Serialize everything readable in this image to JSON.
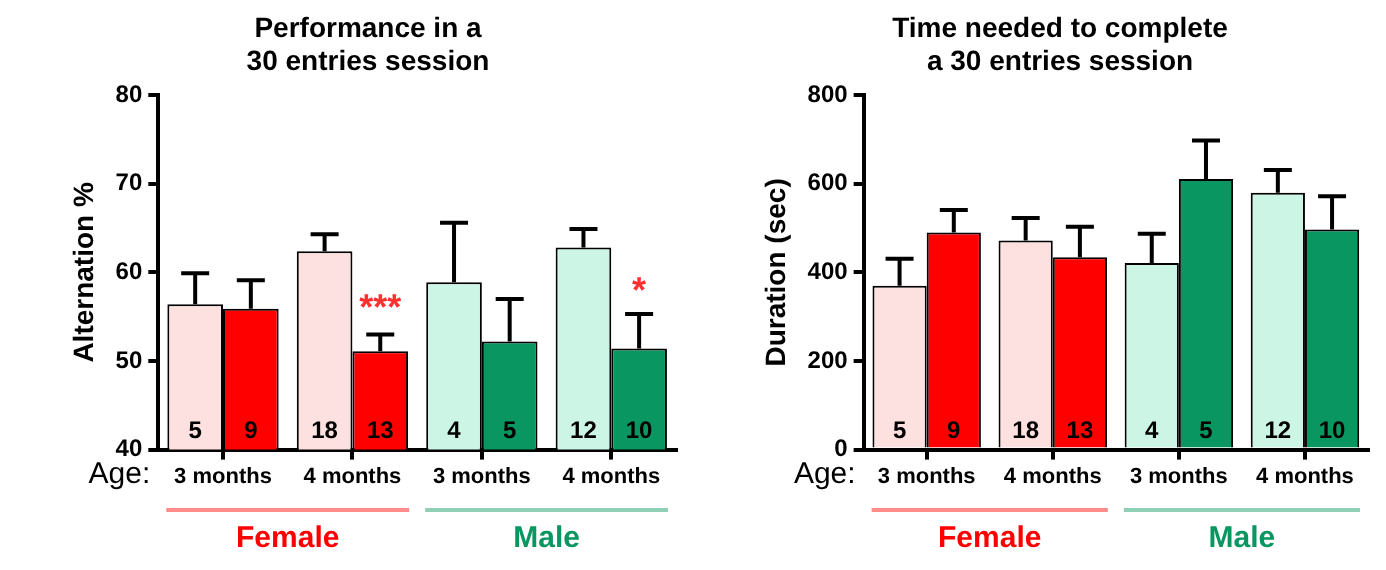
{
  "chart_data": [
    {
      "type": "bar",
      "title": "Performance in a\n30 entries session",
      "xlabel": "Age:",
      "ylabel": "Alternation %",
      "categories": [
        "3 months",
        "4 months",
        "3 months",
        "4 months"
      ],
      "ylim": [
        40,
        80
      ],
      "yticks": [
        40,
        50,
        60,
        70,
        80
      ],
      "series": [
        {
          "colors": [
            "#fde0e0",
            "#fde0e0",
            "#ccf5e6",
            "#ccf5e6"
          ],
          "values": [
            56.4,
            62.4,
            58.9,
            62.8
          ],
          "errors": [
            [
              56.4,
              59.9
            ],
            [
              62.4,
              64.3
            ],
            [
              58.9,
              65.6
            ],
            [
              62.8,
              64.9
            ]
          ]
        },
        {
          "colors": [
            "#ff0000",
            "#ff0000",
            "#0a9660",
            "#0a9660"
          ],
          "values": [
            55.9,
            51.1,
            52.2,
            51.4
          ],
          "errors": [
            [
              55.9,
              59.1
            ],
            [
              51.1,
              53.0
            ],
            [
              52.2,
              57.0
            ],
            [
              51.4,
              55.3
            ]
          ]
        }
      ],
      "annotations": [
        "5",
        "9",
        "18",
        "13",
        "4",
        "5",
        "12",
        "10",
        {
          "text": "***",
          "x": "4 months",
          "y": 55.9
        },
        "*",
        "Female",
        "Male"
      ]
    },
    {
      "type": "bar",
      "title": "Time needed to complete\na 30 entries session",
      "xlabel": "Age:",
      "ylabel": "Duration (sec)",
      "categories": [
        "3 months",
        "4 months",
        "3 months",
        "4 months"
      ],
      "ylim": [
        0,
        800
      ],
      "yticks": [
        0,
        200,
        400,
        600,
        800
      ],
      "series": [
        {
          "colors": [
            "#fde0e0",
            "#fde0e0",
            "#ccf5e6",
            "#ccf5e6"
          ],
          "values": [
            370,
            472,
            421,
            580
          ],
          "errors": [
            [
              370,
              431
            ],
            [
              472,
              523
            ],
            [
              421,
              487
            ],
            [
              580,
              631
            ]
          ]
        },
        {
          "colors": [
            "#ff0000",
            "#ff0000",
            "#0a9660",
            "#0a9660"
          ],
          "values": [
            490,
            434,
            611,
            497
          ],
          "errors": [
            [
              490,
              541
            ],
            [
              434,
              503
            ],
            [
              611,
              698
            ],
            [
              497,
              572
            ]
          ]
        }
      ],
      "annotations": [
        "5",
        "9",
        "18",
        "13",
        "4",
        "5",
        "12",
        "10",
        "Female",
        "Male"
      ]
    }
  ]
}
